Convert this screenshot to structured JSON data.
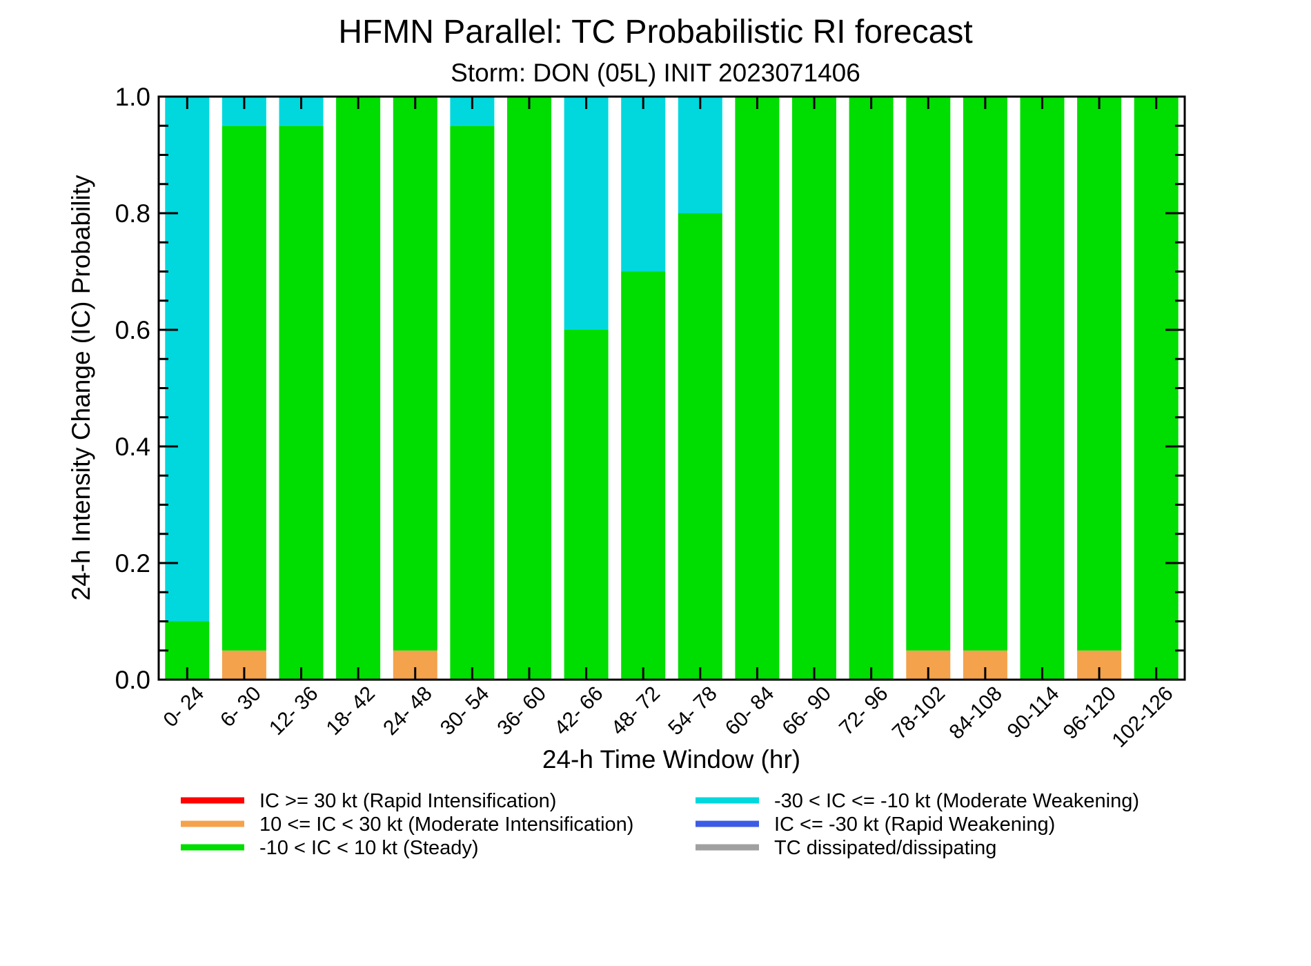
{
  "chart_data": {
    "type": "bar",
    "stacked": true,
    "title": "HFMN Parallel: TC Probabilistic RI forecast",
    "subtitle": "Storm: DON (05L) INIT 2023071406",
    "xlabel": "24-h Time Window (hr)",
    "ylabel": "24-h Intensity Change (IC) Probability",
    "ylim": [
      0,
      1
    ],
    "yticks": [
      "0.0",
      "0.2",
      "0.4",
      "0.6",
      "0.8",
      "1.0"
    ],
    "grid": false,
    "legend_position": "bottom",
    "categories": [
      "0- 24",
      "6- 30",
      "12- 36",
      "18- 42",
      "24- 48",
      "30- 54",
      "36- 60",
      "42- 66",
      "48- 72",
      "54- 78",
      "60- 84",
      "66- 90",
      "72- 96",
      "78-102",
      "84-108",
      "90-114",
      "96-120",
      "102-126"
    ],
    "series": [
      {
        "name": "IC >= 30 kt (Rapid Intensification)",
        "color": "#ff0000",
        "values": [
          0,
          0,
          0,
          0,
          0,
          0,
          0,
          0,
          0,
          0,
          0,
          0,
          0,
          0,
          0,
          0,
          0,
          0
        ]
      },
      {
        "name": "10 <= IC < 30 kt (Moderate Intensification)",
        "color": "#f4a24c",
        "values": [
          0,
          0.05,
          0,
          0,
          0.05,
          0,
          0,
          0,
          0,
          0,
          0,
          0,
          0,
          0.05,
          0.05,
          0,
          0.05,
          0
        ]
      },
      {
        "name": "-10 < IC < 10 kt (Steady)",
        "color": "#00dd00",
        "values": [
          0.1,
          0.9,
          0.95,
          1.0,
          0.95,
          0.95,
          1.0,
          0.6,
          0.7,
          0.8,
          1.0,
          1.0,
          1.0,
          0.95,
          0.95,
          1.0,
          0.95,
          1.0
        ]
      },
      {
        "name": "-30 < IC <= -10 kt (Moderate Weakening)",
        "color": "#00d8dd",
        "values": [
          0.9,
          0.05,
          0.05,
          0,
          0,
          0.05,
          0,
          0.4,
          0.3,
          0.2,
          0,
          0,
          0,
          0,
          0,
          0,
          0,
          0
        ]
      },
      {
        "name": "IC <= -30 kt (Rapid Weakening)",
        "color": "#3c5ce6",
        "values": [
          0,
          0,
          0,
          0,
          0,
          0,
          0,
          0,
          0,
          0,
          0,
          0,
          0,
          0,
          0,
          0,
          0,
          0
        ]
      },
      {
        "name": "TC dissipated/dissipating",
        "color": "#a0a0a0",
        "values": [
          0,
          0,
          0,
          0,
          0,
          0,
          0,
          0,
          0,
          0,
          0,
          0,
          0,
          0,
          0,
          0,
          0,
          0
        ]
      }
    ]
  }
}
